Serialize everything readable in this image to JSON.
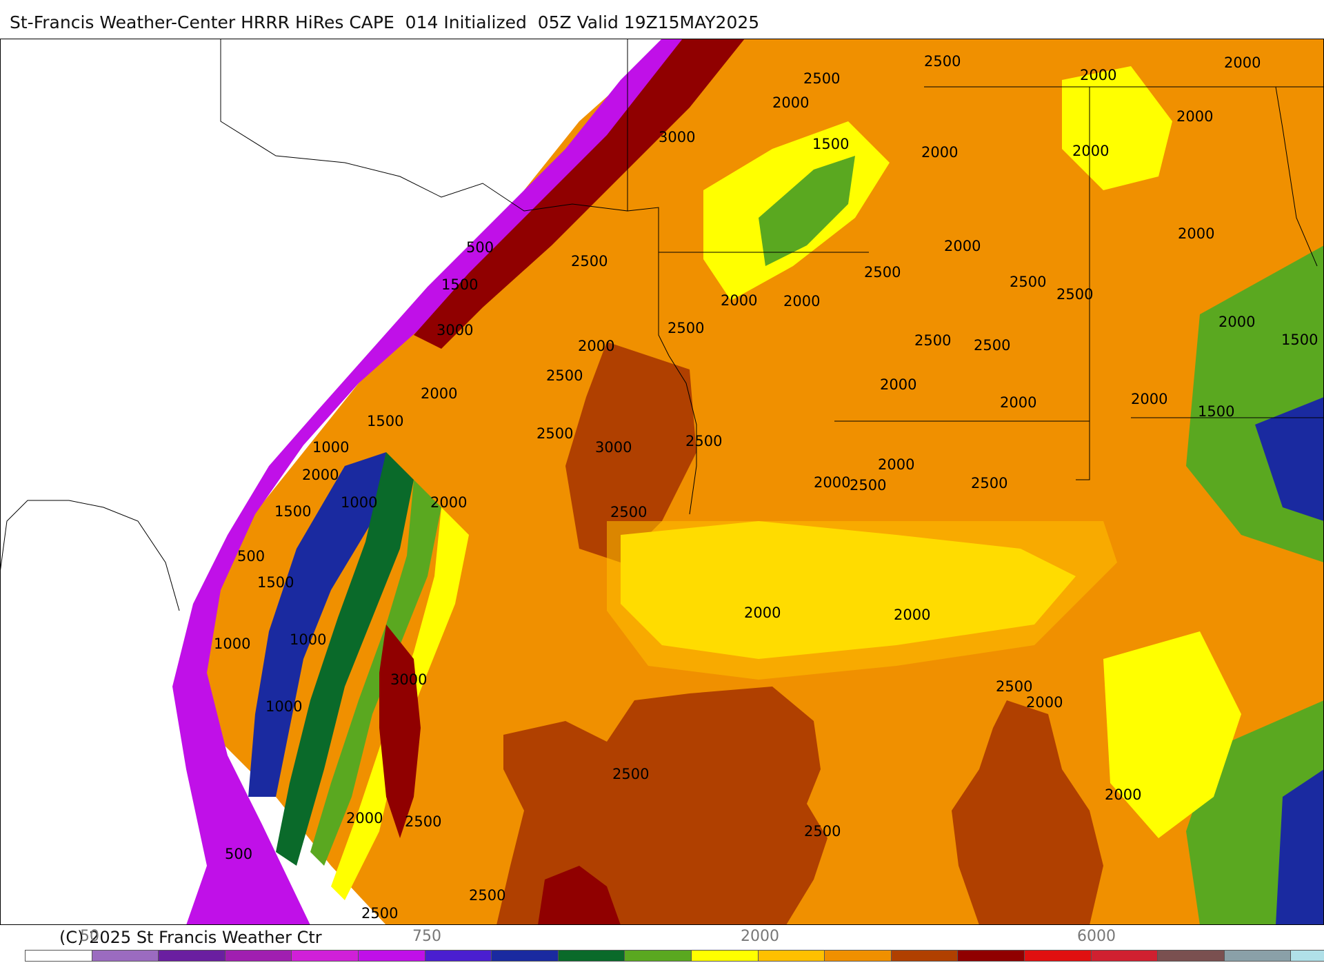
{
  "title": "St-Francis Weather-Center HRRR HiRes CAPE  014 Initialized  05Z Valid 19Z15MAY2025",
  "copyright": "(C) 2025 St Francis Weather Ctr",
  "colorbar": {
    "tick_labels": [
      "50",
      "750",
      "2000",
      "6000"
    ],
    "colors": [
      "#ffffff",
      "#9b6bc0",
      "#6a1fa0",
      "#a01fb0",
      "#d020d8",
      "#c010e8",
      "#4a1fd0",
      "#1a2aa0",
      "#0a6a2a",
      "#5aa820",
      "#ffff00",
      "#ffc000",
      "#f09000",
      "#b04000",
      "#900000",
      "#e01010",
      "#d02030",
      "#7a5050",
      "#8aa0a8",
      "#b0e0e8"
    ]
  },
  "map": {
    "contour_labels": [
      "2500",
      "2000",
      "2500",
      "2000",
      "2000",
      "3000",
      "1500",
      "2000",
      "2000",
      "2000",
      "500",
      "2500",
      "2500",
      "1500",
      "2000",
      "2500",
      "2000",
      "2500",
      "3000",
      "2000",
      "2500",
      "2500",
      "1500",
      "2000",
      "2000",
      "2500",
      "2000",
      "2000",
      "1500",
      "1000",
      "3000",
      "2500",
      "2000",
      "2000",
      "2000",
      "2500",
      "2000",
      "1000",
      "2500",
      "2000",
      "1500",
      "500",
      "2000",
      "2000",
      "1500",
      "2500",
      "1500",
      "1000",
      "1000",
      "3000",
      "2500",
      "2000",
      "2500",
      "1000",
      "2000",
      "2500",
      "2500",
      "2000",
      "500",
      "2500",
      "2500",
      "2000",
      "2500",
      "2000",
      "2500"
    ]
  }
}
